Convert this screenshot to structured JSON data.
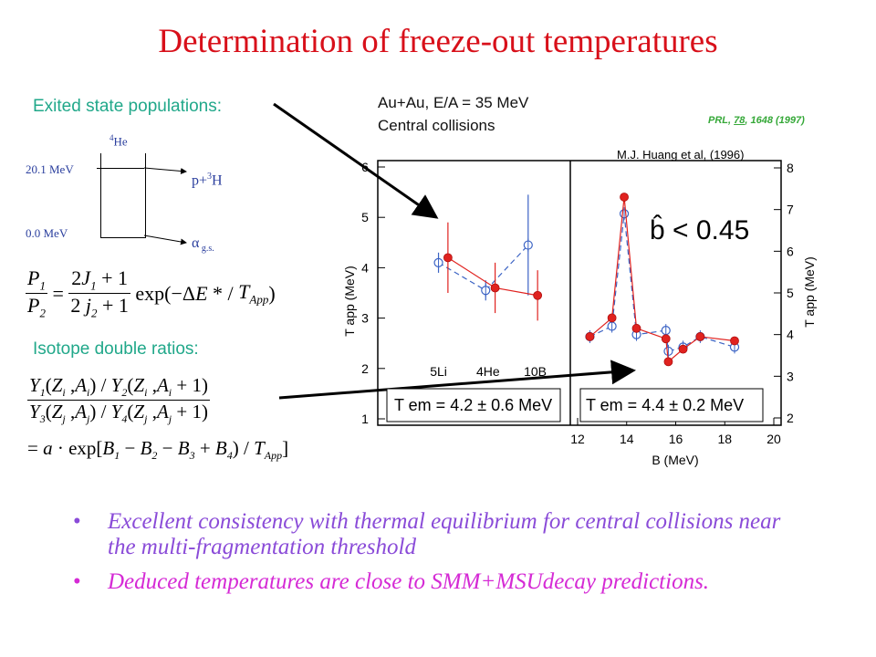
{
  "title": "Determination of freeze-out temperatures",
  "left": {
    "exited_label": "Exited state populations:",
    "level_top_energy": "20.1 MeV",
    "level_bottom_energy": "0.0 MeV",
    "nucleus_he4": "4He",
    "decay_upper": "p+3H",
    "decay_lower": "α g.s.",
    "isotope_label": "Isotope double ratios:"
  },
  "header": {
    "system": "Au+Au, E/A = 35 MeV",
    "collisions": "Central collisions",
    "reference": "PRL, 78, 1648 (1997)",
    "reference_volume": "78",
    "citation": "M.J. Huang et al, (1996)"
  },
  "bullets": [
    "Excellent consistency with thermal equilibrium for central collisions near the multi-fragmentation threshold",
    "Deduced temperatures are close to SMM+MSUdecay predictions."
  ],
  "colors": {
    "title": "#d8101a",
    "red_series": "#e0221f",
    "blue_series": "#3b63c4",
    "teal": "#21a88a"
  },
  "chart_data": [
    {
      "type": "scatter",
      "ylabel": "T app (MeV)",
      "ylim": [
        1,
        6
      ],
      "categories": [
        "5Li",
        "4He",
        "10B"
      ],
      "yticks": [
        "1",
        "2",
        "3",
        "4",
        "5",
        "6"
      ],
      "annotation": "T em = 4.2 ± 0.6 MeV",
      "series": [
        {
          "color": "#3b63c4",
          "marker": "open-circle",
          "line": "dashed",
          "points": [
            {
              "x": 0.9,
              "y": 4.1
            },
            {
              "x": 1.9,
              "y": 3.55
            },
            {
              "x": 2.8,
              "y": 4.45
            }
          ],
          "err": [
            0.2,
            0.2,
            1.0
          ]
        },
        {
          "color": "#e0221f",
          "marker": "filled-circle",
          "line": "solid",
          "points": [
            {
              "x": 1.1,
              "y": 4.2
            },
            {
              "x": 2.1,
              "y": 3.6
            },
            {
              "x": 3.0,
              "y": 3.45
            }
          ],
          "err": [
            0.7,
            0.5,
            0.5
          ]
        }
      ]
    },
    {
      "type": "scatter",
      "xlabel": "B (MeV)",
      "ylabel": "T app (MeV)",
      "xlim": [
        12,
        20
      ],
      "ylim": [
        2,
        8
      ],
      "xticks": [
        "12",
        "14",
        "16",
        "18",
        "20"
      ],
      "yticks": [
        "2",
        "3",
        "4",
        "5",
        "6",
        "7",
        "8"
      ],
      "annotation": "T em = 4.4 ± 0.2 MeV",
      "formula": "b̂ < 0.45",
      "series": [
        {
          "color": "#3b63c4",
          "marker": "open-circle",
          "line": "dashed",
          "points": [
            {
              "x": 12.5,
              "y": 3.95
            },
            {
              "x": 13.4,
              "y": 4.2
            },
            {
              "x": 13.9,
              "y": 6.9
            },
            {
              "x": 14.4,
              "y": 4.0
            },
            {
              "x": 15.6,
              "y": 4.1
            },
            {
              "x": 15.7,
              "y": 3.6
            },
            {
              "x": 16.3,
              "y": 3.7
            },
            {
              "x": 17.0,
              "y": 3.95
            },
            {
              "x": 18.4,
              "y": 3.7
            }
          ]
        },
        {
          "color": "#e0221f",
          "marker": "filled-circle",
          "line": "solid",
          "points": [
            {
              "x": 12.5,
              "y": 3.95
            },
            {
              "x": 13.4,
              "y": 4.4
            },
            {
              "x": 13.9,
              "y": 7.3
            },
            {
              "x": 14.4,
              "y": 4.15
            },
            {
              "x": 15.6,
              "y": 3.9
            },
            {
              "x": 15.7,
              "y": 3.35
            },
            {
              "x": 16.3,
              "y": 3.65
            },
            {
              "x": 17.0,
              "y": 3.95
            },
            {
              "x": 18.4,
              "y": 3.85
            }
          ]
        }
      ]
    }
  ]
}
